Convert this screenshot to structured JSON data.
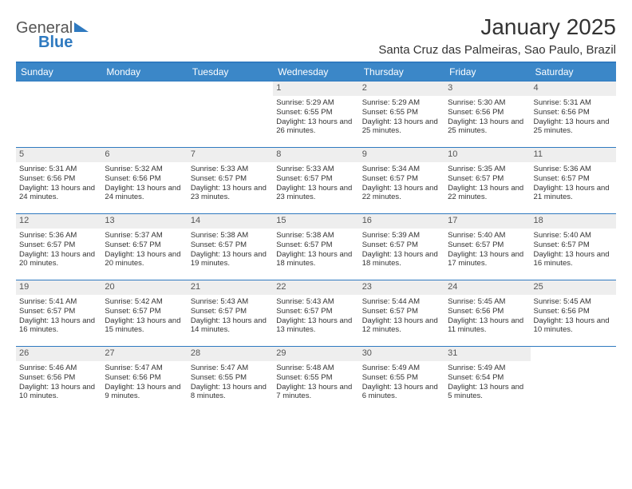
{
  "brand": {
    "text1": "General",
    "text2": "Blue"
  },
  "title": "January 2025",
  "location": "Santa Cruz das Palmeiras, Sao Paulo, Brazil",
  "colors": {
    "accent": "#3b87c8",
    "rule": "#2f7ac0",
    "grey_bar": "#eeeeee",
    "text": "#333333",
    "background": "#ffffff"
  },
  "days_of_week": [
    "Sunday",
    "Monday",
    "Tuesday",
    "Wednesday",
    "Thursday",
    "Friday",
    "Saturday"
  ],
  "weeks": [
    [
      {
        "num": "",
        "lines": []
      },
      {
        "num": "",
        "lines": []
      },
      {
        "num": "",
        "lines": []
      },
      {
        "num": "1",
        "lines": [
          "Sunrise: 5:29 AM",
          "Sunset: 6:55 PM",
          "Daylight: 13 hours and 26 minutes."
        ]
      },
      {
        "num": "2",
        "lines": [
          "Sunrise: 5:29 AM",
          "Sunset: 6:55 PM",
          "Daylight: 13 hours and 25 minutes."
        ]
      },
      {
        "num": "3",
        "lines": [
          "Sunrise: 5:30 AM",
          "Sunset: 6:56 PM",
          "Daylight: 13 hours and 25 minutes."
        ]
      },
      {
        "num": "4",
        "lines": [
          "Sunrise: 5:31 AM",
          "Sunset: 6:56 PM",
          "Daylight: 13 hours and 25 minutes."
        ]
      }
    ],
    [
      {
        "num": "5",
        "lines": [
          "Sunrise: 5:31 AM",
          "Sunset: 6:56 PM",
          "Daylight: 13 hours and 24 minutes."
        ]
      },
      {
        "num": "6",
        "lines": [
          "Sunrise: 5:32 AM",
          "Sunset: 6:56 PM",
          "Daylight: 13 hours and 24 minutes."
        ]
      },
      {
        "num": "7",
        "lines": [
          "Sunrise: 5:33 AM",
          "Sunset: 6:57 PM",
          "Daylight: 13 hours and 23 minutes."
        ]
      },
      {
        "num": "8",
        "lines": [
          "Sunrise: 5:33 AM",
          "Sunset: 6:57 PM",
          "Daylight: 13 hours and 23 minutes."
        ]
      },
      {
        "num": "9",
        "lines": [
          "Sunrise: 5:34 AM",
          "Sunset: 6:57 PM",
          "Daylight: 13 hours and 22 minutes."
        ]
      },
      {
        "num": "10",
        "lines": [
          "Sunrise: 5:35 AM",
          "Sunset: 6:57 PM",
          "Daylight: 13 hours and 22 minutes."
        ]
      },
      {
        "num": "11",
        "lines": [
          "Sunrise: 5:36 AM",
          "Sunset: 6:57 PM",
          "Daylight: 13 hours and 21 minutes."
        ]
      }
    ],
    [
      {
        "num": "12",
        "lines": [
          "Sunrise: 5:36 AM",
          "Sunset: 6:57 PM",
          "Daylight: 13 hours and 20 minutes."
        ]
      },
      {
        "num": "13",
        "lines": [
          "Sunrise: 5:37 AM",
          "Sunset: 6:57 PM",
          "Daylight: 13 hours and 20 minutes."
        ]
      },
      {
        "num": "14",
        "lines": [
          "Sunrise: 5:38 AM",
          "Sunset: 6:57 PM",
          "Daylight: 13 hours and 19 minutes."
        ]
      },
      {
        "num": "15",
        "lines": [
          "Sunrise: 5:38 AM",
          "Sunset: 6:57 PM",
          "Daylight: 13 hours and 18 minutes."
        ]
      },
      {
        "num": "16",
        "lines": [
          "Sunrise: 5:39 AM",
          "Sunset: 6:57 PM",
          "Daylight: 13 hours and 18 minutes."
        ]
      },
      {
        "num": "17",
        "lines": [
          "Sunrise: 5:40 AM",
          "Sunset: 6:57 PM",
          "Daylight: 13 hours and 17 minutes."
        ]
      },
      {
        "num": "18",
        "lines": [
          "Sunrise: 5:40 AM",
          "Sunset: 6:57 PM",
          "Daylight: 13 hours and 16 minutes."
        ]
      }
    ],
    [
      {
        "num": "19",
        "lines": [
          "Sunrise: 5:41 AM",
          "Sunset: 6:57 PM",
          "Daylight: 13 hours and 16 minutes."
        ]
      },
      {
        "num": "20",
        "lines": [
          "Sunrise: 5:42 AM",
          "Sunset: 6:57 PM",
          "Daylight: 13 hours and 15 minutes."
        ]
      },
      {
        "num": "21",
        "lines": [
          "Sunrise: 5:43 AM",
          "Sunset: 6:57 PM",
          "Daylight: 13 hours and 14 minutes."
        ]
      },
      {
        "num": "22",
        "lines": [
          "Sunrise: 5:43 AM",
          "Sunset: 6:57 PM",
          "Daylight: 13 hours and 13 minutes."
        ]
      },
      {
        "num": "23",
        "lines": [
          "Sunrise: 5:44 AM",
          "Sunset: 6:57 PM",
          "Daylight: 13 hours and 12 minutes."
        ]
      },
      {
        "num": "24",
        "lines": [
          "Sunrise: 5:45 AM",
          "Sunset: 6:56 PM",
          "Daylight: 13 hours and 11 minutes."
        ]
      },
      {
        "num": "25",
        "lines": [
          "Sunrise: 5:45 AM",
          "Sunset: 6:56 PM",
          "Daylight: 13 hours and 10 minutes."
        ]
      }
    ],
    [
      {
        "num": "26",
        "lines": [
          "Sunrise: 5:46 AM",
          "Sunset: 6:56 PM",
          "Daylight: 13 hours and 10 minutes."
        ]
      },
      {
        "num": "27",
        "lines": [
          "Sunrise: 5:47 AM",
          "Sunset: 6:56 PM",
          "Daylight: 13 hours and 9 minutes."
        ]
      },
      {
        "num": "28",
        "lines": [
          "Sunrise: 5:47 AM",
          "Sunset: 6:55 PM",
          "Daylight: 13 hours and 8 minutes."
        ]
      },
      {
        "num": "29",
        "lines": [
          "Sunrise: 5:48 AM",
          "Sunset: 6:55 PM",
          "Daylight: 13 hours and 7 minutes."
        ]
      },
      {
        "num": "30",
        "lines": [
          "Sunrise: 5:49 AM",
          "Sunset: 6:55 PM",
          "Daylight: 13 hours and 6 minutes."
        ]
      },
      {
        "num": "31",
        "lines": [
          "Sunrise: 5:49 AM",
          "Sunset: 6:54 PM",
          "Daylight: 13 hours and 5 minutes."
        ]
      },
      {
        "num": "",
        "lines": []
      }
    ]
  ]
}
